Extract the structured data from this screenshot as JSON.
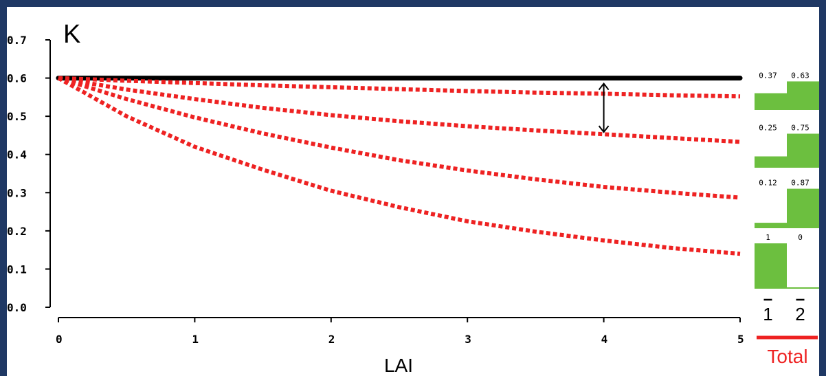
{
  "chart_data": {
    "type": "line",
    "title": "",
    "xlabel": "LAI",
    "ylabel": "K",
    "xlim": [
      0,
      5
    ],
    "ylim": [
      0,
      0.7
    ],
    "x_ticks": [
      "0",
      "1",
      "2",
      "3",
      "4",
      "5"
    ],
    "y_ticks": [
      "0.0",
      "0.1",
      "0.2",
      "0.3",
      "0.4",
      "0.5",
      "0.6",
      "0.7"
    ],
    "colors": {
      "total": "#000000",
      "components": "#ee2222",
      "bars": "#6cbf3f",
      "frame": "#1f3864"
    },
    "series": [
      {
        "style": "solid",
        "x": [
          0,
          5
        ],
        "y": [
          0.6,
          0.6
        ]
      },
      {
        "style": "dotted",
        "x": [
          0,
          0.5,
          1,
          1.5,
          2,
          2.5,
          3,
          3.5,
          4,
          4.5,
          5
        ],
        "y": [
          0.6,
          0.593,
          0.587,
          0.581,
          0.576,
          0.571,
          0.566,
          0.562,
          0.559,
          0.555,
          0.552
        ]
      },
      {
        "style": "dotted",
        "x": [
          0,
          0.5,
          1,
          1.5,
          2,
          2.5,
          3,
          3.5,
          4,
          4.5,
          5
        ],
        "y": [
          0.6,
          0.57,
          0.545,
          0.522,
          0.503,
          0.487,
          0.474,
          0.463,
          0.453,
          0.443,
          0.433
        ]
      },
      {
        "style": "dotted",
        "x": [
          0,
          0.5,
          1,
          1.5,
          2,
          2.5,
          3,
          3.5,
          4,
          4.5,
          5
        ],
        "y": [
          0.6,
          0.545,
          0.497,
          0.455,
          0.418,
          0.385,
          0.358,
          0.335,
          0.315,
          0.3,
          0.287
        ]
      },
      {
        "style": "dotted",
        "x": [
          0,
          0.5,
          1,
          1.5,
          2,
          2.5,
          3,
          3.5,
          4,
          4.5,
          5
        ],
        "y": [
          0.6,
          0.5,
          0.42,
          0.36,
          0.305,
          0.262,
          0.225,
          0.198,
          0.175,
          0.155,
          0.14
        ]
      }
    ],
    "annotation": {
      "type": "double-arrow",
      "x": 4,
      "y_from": 0.6,
      "y_to": 0.455
    },
    "inset_bars": {
      "categories": [
        "1",
        "2"
      ],
      "category_marks": "overbar",
      "total_label": "Total",
      "groups": [
        {
          "values": [
            0.37,
            0.63
          ],
          "labels": [
            "0.37",
            "0.63"
          ]
        },
        {
          "values": [
            0.25,
            0.75
          ],
          "labels": [
            "0.25",
            "0.75"
          ]
        },
        {
          "values": [
            0.12,
            0.87
          ],
          "labels": [
            "0.12",
            "0.87"
          ]
        },
        {
          "values": [
            1,
            0
          ],
          "labels": [
            "1",
            "0"
          ]
        }
      ]
    }
  }
}
